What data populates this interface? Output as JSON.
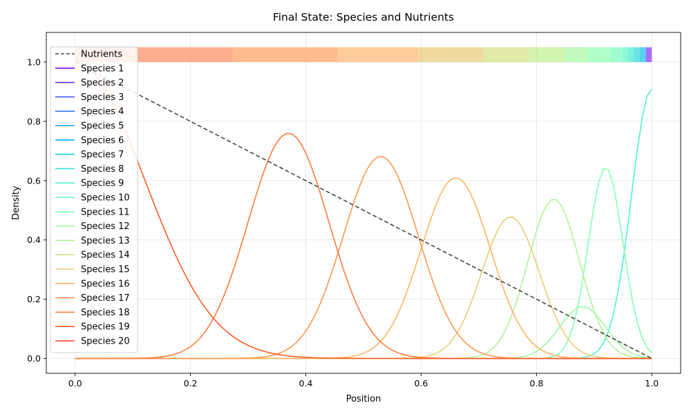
{
  "chart_data": {
    "type": "line",
    "title": "Final State: Species and Nutrients",
    "xlabel": "Position",
    "ylabel": "Density",
    "xlim": [
      -0.05,
      1.05
    ],
    "ylim": [
      -0.05,
      1.1
    ],
    "xticks": [
      0.0,
      0.2,
      0.4,
      0.6,
      0.8,
      1.0
    ],
    "xtick_labels": [
      "0.0",
      "0.2",
      "0.4",
      "0.6",
      "0.8",
      "1.0"
    ],
    "yticks": [
      0.0,
      0.2,
      0.4,
      0.6,
      0.8,
      1.0
    ],
    "ytick_labels": [
      "0.0",
      "0.2",
      "0.4",
      "0.6",
      "0.8",
      "1.0"
    ],
    "grid": true,
    "legend_position": "upper-left",
    "nutrients": {
      "name": "Nutrients",
      "color": "#444444",
      "style": "dashed",
      "x": [
        0.0,
        1.0
      ],
      "y": [
        1.0,
        0.0
      ]
    },
    "species": [
      {
        "name": "Species 1",
        "color": "#8000ff",
        "peak": 0.0,
        "center": 0.0,
        "width": 0.0
      },
      {
        "name": "Species 2",
        "color": "#6629fe",
        "peak": 0.0,
        "center": 0.0,
        "width": 0.0
      },
      {
        "name": "Species 3",
        "color": "#4c50fc",
        "peak": 0.0,
        "center": 0.0,
        "width": 0.0
      },
      {
        "name": "Species 4",
        "color": "#3176f8",
        "peak": 0.0,
        "center": 0.0,
        "width": 0.0
      },
      {
        "name": "Species 5",
        "color": "#1996f3",
        "peak": 0.0,
        "center": 0.0,
        "width": 0.0
      },
      {
        "name": "Species 6",
        "color": "#00b5eb",
        "peak": 0.0,
        "center": 0.0,
        "width": 0.0
      },
      {
        "name": "Species 7",
        "color": "#18cde4",
        "peak": 0.0,
        "center": 0.0,
        "width": 0.0
      },
      {
        "name": "Species 8",
        "color": "#32e1da",
        "peak": 0.0,
        "center": 0.0,
        "width": 0.0
      },
      {
        "name": "Species 9",
        "color": "#4cf2ce",
        "peak": 0.91,
        "center": 1.0,
        "width": 0.035
      },
      {
        "name": "Species 10",
        "color": "#66fcc2",
        "peak": 0.0,
        "center": 0.0,
        "width": 0.0
      },
      {
        "name": "Species 11",
        "color": "#80ffb4",
        "peak": 0.645,
        "center": 0.92,
        "width": 0.03
      },
      {
        "name": "Species 12",
        "color": "#9afca6",
        "peak": 0.175,
        "center": 0.88,
        "width": 0.04
      },
      {
        "name": "Species 13",
        "color": "#b2f296",
        "peak": 0.538,
        "center": 0.83,
        "width": 0.045
      },
      {
        "name": "Species 14",
        "color": "#cce186",
        "peak": 0.0,
        "center": 0.0,
        "width": 0.0
      },
      {
        "name": "Species 15",
        "color": "#e6cd73",
        "peak": 0.478,
        "center": 0.755,
        "width": 0.05
      },
      {
        "name": "Species 16",
        "color": "#ffb360",
        "peak": 0.61,
        "center": 0.66,
        "width": 0.06
      },
      {
        "name": "Species 17",
        "color": "#ff964e",
        "peak": 0.682,
        "center": 0.53,
        "width": 0.065
      },
      {
        "name": "Species 18",
        "color": "#ff7a3b",
        "peak": 0.76,
        "center": 0.37,
        "width": 0.07
      },
      {
        "name": "Species 19",
        "color": "#ff5a27",
        "peak": 1.0,
        "center": 0.0,
        "width": 0.12
      },
      {
        "name": "Species 20",
        "color": "#ff3a14",
        "peak": 0.0,
        "center": 0.0,
        "width": 0.0
      }
    ],
    "top_band": {
      "y": [
        1.0,
        1.05
      ],
      "segments": [
        {
          "x0": 0.0,
          "x1": 0.042,
          "color": "#ff7f50"
        },
        {
          "x0": 0.042,
          "x1": 0.273,
          "color": "#ff8a60"
        },
        {
          "x0": 0.273,
          "x1": 0.455,
          "color": "#ffa060"
        },
        {
          "x0": 0.455,
          "x1": 0.595,
          "color": "#ffb570"
        },
        {
          "x0": 0.595,
          "x1": 0.708,
          "color": "#e8cc78"
        },
        {
          "x0": 0.708,
          "x1": 0.788,
          "color": "#d4e080"
        },
        {
          "x0": 0.788,
          "x1": 0.849,
          "color": "#bdf08f"
        },
        {
          "x0": 0.849,
          "x1": 0.889,
          "color": "#a6f8a0"
        },
        {
          "x0": 0.889,
          "x1": 0.929,
          "color": "#8effb0"
        },
        {
          "x0": 0.929,
          "x1": 0.949,
          "color": "#74fcbc"
        },
        {
          "x0": 0.949,
          "x1": 0.959,
          "color": "#5cf5c8"
        },
        {
          "x0": 0.959,
          "x1": 0.969,
          "color": "#42ead4"
        },
        {
          "x0": 0.969,
          "x1": 0.979,
          "color": "#2ad8de"
        },
        {
          "x0": 0.979,
          "x1": 0.99,
          "color": "#10bfe8"
        },
        {
          "x0": 0.99,
          "x1": 1.0,
          "color": "#8a2cff"
        }
      ]
    }
  }
}
